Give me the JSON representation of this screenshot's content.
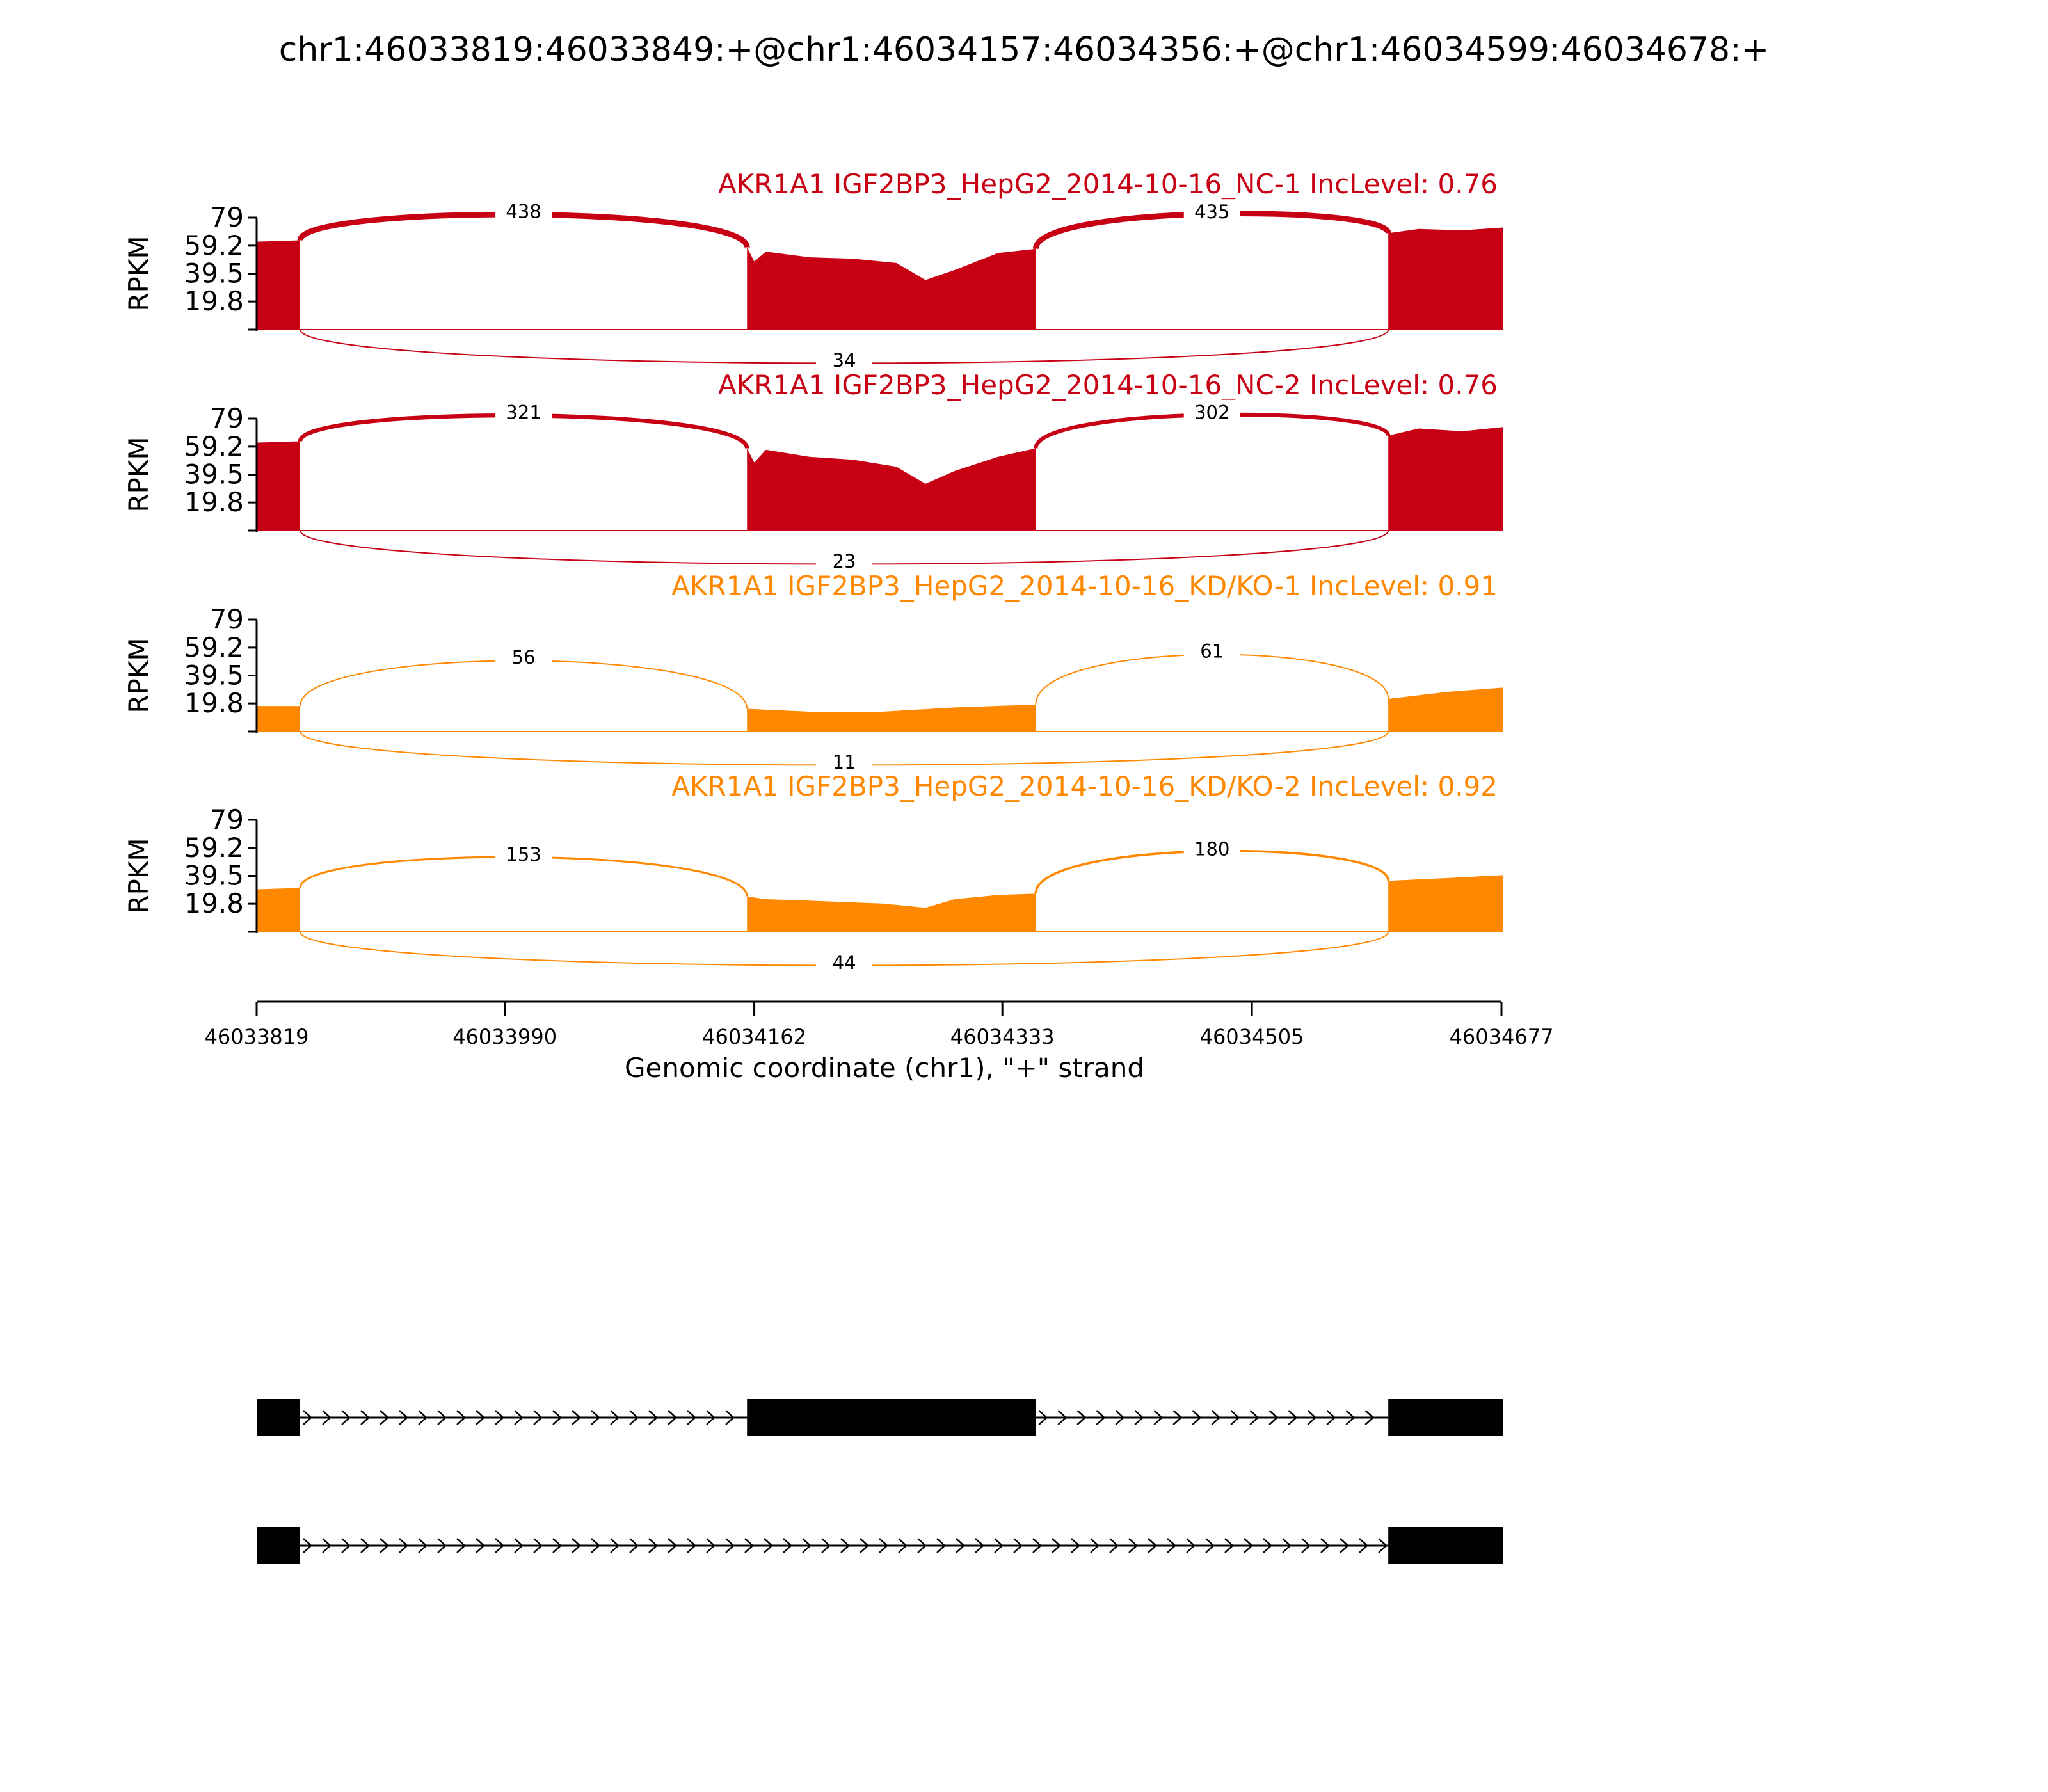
{
  "colors": {
    "nc": "#c80014",
    "kd": "#ff8800",
    "axis": "#000000",
    "gene": "#000000"
  },
  "chart_data": {
    "type": "area",
    "title": "chr1:46033819:46033849:+@chr1:46034157:46034356:+@chr1:46034599:46034678:+",
    "xlabel": "Genomic coordinate (chr1), \"+\" strand",
    "ylabel": "RPKM",
    "xlim": [
      46033819,
      46034677
    ],
    "xticks": [
      "46033819",
      "46033990",
      "46034162",
      "46034333",
      "46034505",
      "46034677"
    ],
    "ylim": [
      0,
      79
    ],
    "yticks": [
      "79",
      "59.2",
      "39.5",
      "19.8"
    ],
    "exons": [
      [
        46033819,
        46033849
      ],
      [
        46034157,
        46034356
      ],
      [
        46034599,
        46034678
      ]
    ],
    "samples": [
      {
        "name": "AKR1A1 IGF2BP3_HepG2_2014-10-16_NC-1 IncLevel: 0.76",
        "group": "nc",
        "junctions": {
          "up": "438",
          "down": "435",
          "skip": "34"
        },
        "coverage": {
          "exon1": [
            [
              46033819,
              62
            ],
            [
              46033849,
              63
            ]
          ],
          "exon2": [
            [
              46034157,
              58
            ],
            [
              46034162,
              48
            ],
            [
              46034170,
              55
            ],
            [
              46034200,
              51
            ],
            [
              46034230,
              50
            ],
            [
              46034260,
              47
            ],
            [
              46034280,
              35
            ],
            [
              46034300,
              42
            ],
            [
              46034330,
              54
            ],
            [
              46034356,
              57
            ]
          ],
          "exon3": [
            [
              46034599,
              68
            ],
            [
              46034620,
              71
            ],
            [
              46034650,
              70
            ],
            [
              46034678,
              72
            ]
          ]
        }
      },
      {
        "name": "AKR1A1 IGF2BP3_HepG2_2014-10-16_NC-2 IncLevel: 0.76",
        "group": "nc",
        "junctions": {
          "up": "321",
          "down": "302",
          "skip": "23"
        },
        "coverage": {
          "exon1": [
            [
              46033819,
              62
            ],
            [
              46033849,
              63
            ]
          ],
          "exon2": [
            [
              46034157,
              58
            ],
            [
              46034162,
              48
            ],
            [
              46034170,
              57
            ],
            [
              46034200,
              52
            ],
            [
              46034230,
              50
            ],
            [
              46034260,
              45
            ],
            [
              46034280,
              33
            ],
            [
              46034300,
              42
            ],
            [
              46034330,
              52
            ],
            [
              46034356,
              58
            ]
          ],
          "exon3": [
            [
              46034599,
              67
            ],
            [
              46034620,
              72
            ],
            [
              46034650,
              70
            ],
            [
              46034678,
              73
            ]
          ]
        }
      },
      {
        "name": "AKR1A1 IGF2BP3_HepG2_2014-10-16_KD/KO-1 IncLevel: 0.91",
        "group": "kd",
        "junctions": {
          "up": "56",
          "down": "61",
          "skip": "11"
        },
        "coverage": {
          "exon1": [
            [
              46033819,
              18
            ],
            [
              46033849,
              18
            ]
          ],
          "exon2": [
            [
              46034157,
              16
            ],
            [
              46034200,
              14
            ],
            [
              46034250,
              14
            ],
            [
              46034300,
              17
            ],
            [
              46034356,
              19
            ]
          ],
          "exon3": [
            [
              46034599,
              23
            ],
            [
              46034640,
              28
            ],
            [
              46034678,
              31
            ]
          ]
        }
      },
      {
        "name": "AKR1A1 IGF2BP3_HepG2_2014-10-16_KD/KO-2 IncLevel: 0.92",
        "group": "kd",
        "junctions": {
          "up": "153",
          "down": "180",
          "skip": "44"
        },
        "coverage": {
          "exon1": [
            [
              46033819,
              30
            ],
            [
              46033849,
              31
            ]
          ],
          "exon2": [
            [
              46034157,
              25
            ],
            [
              46034170,
              23
            ],
            [
              46034200,
              22
            ],
            [
              46034250,
              20
            ],
            [
              46034280,
              17
            ],
            [
              46034300,
              23
            ],
            [
              46034330,
              26
            ],
            [
              46034356,
              27
            ]
          ],
          "exon3": [
            [
              46034599,
              36
            ],
            [
              46034640,
              38
            ],
            [
              46034678,
              40
            ]
          ]
        }
      }
    ],
    "isoforms": [
      {
        "exons": [
          [
            46033819,
            46033849
          ],
          [
            46034157,
            46034356
          ],
          [
            46034599,
            46034678
          ]
        ]
      },
      {
        "exons": [
          [
            46033819,
            46033849
          ],
          [
            46034599,
            46034678
          ]
        ]
      }
    ]
  }
}
